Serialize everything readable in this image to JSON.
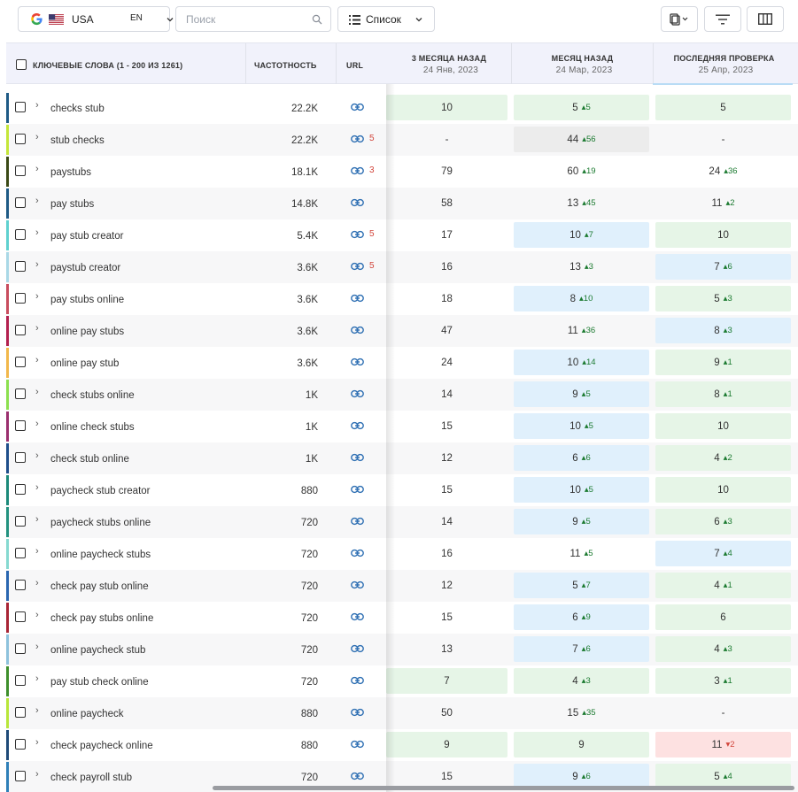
{
  "toolbar": {
    "country": "USA",
    "language": "EN",
    "search_placeholder": "Поиск",
    "view_label": "Список",
    "icons": [
      "google-icon",
      "us-flag-icon",
      "chevron-down-icon",
      "search-icon",
      "list-icon",
      "copy-icon",
      "filter-icon",
      "columns-icon"
    ]
  },
  "table": {
    "header": {
      "keywords": "КЛЮЧЕВЫЕ СЛОВА (1 - 200 ИЗ 1261)",
      "frequency": "ЧАСТОТНОСТЬ",
      "url": "URL",
      "periods": [
        {
          "label": "3 МЕСЯЦА НАЗАД",
          "date": "24 Янв, 2023"
        },
        {
          "label": "МЕСЯЦ НАЗАД",
          "date": "24 Мар, 2023"
        },
        {
          "label": "ПОСЛЕДНЯЯ ПРОВЕРКА",
          "date": "25 Апр, 2023"
        }
      ]
    },
    "rows": [
      {
        "kw": "checks stub",
        "freq": "22.2K",
        "urls": "",
        "stripe": "#1e5a85",
        "p": [
          {
            "v": "10",
            "d": "",
            "bg": "green"
          },
          {
            "v": "5",
            "d": "5",
            "bg": "green"
          },
          {
            "v": "5",
            "d": "",
            "bg": "green"
          }
        ]
      },
      {
        "kw": "stub checks",
        "freq": "22.2K",
        "urls": "5",
        "stripe": "#c4e63a",
        "p": [
          {
            "v": "-",
            "d": "",
            "bg": ""
          },
          {
            "v": "44",
            "d": "56",
            "bg": "gray"
          },
          {
            "v": "-",
            "d": "",
            "bg": ""
          }
        ]
      },
      {
        "kw": "paystubs",
        "freq": "18.1K",
        "urls": "3",
        "stripe": "#3b4a16",
        "p": [
          {
            "v": "79",
            "d": "",
            "bg": ""
          },
          {
            "v": "60",
            "d": "19",
            "bg": ""
          },
          {
            "v": "24",
            "d": "36",
            "bg": ""
          }
        ]
      },
      {
        "kw": "pay stubs",
        "freq": "14.8K",
        "urls": "",
        "stripe": "#1e5a85",
        "p": [
          {
            "v": "58",
            "d": "",
            "bg": ""
          },
          {
            "v": "13",
            "d": "45",
            "bg": ""
          },
          {
            "v": "11",
            "d": "2",
            "bg": ""
          }
        ]
      },
      {
        "kw": "pay stub creator",
        "freq": "5.4K",
        "urls": "5",
        "stripe": "#5fd1cf",
        "p": [
          {
            "v": "17",
            "d": "",
            "bg": ""
          },
          {
            "v": "10",
            "d": "7",
            "bg": "blue"
          },
          {
            "v": "10",
            "d": "",
            "bg": "green"
          }
        ]
      },
      {
        "kw": "paystub creator",
        "freq": "3.6K",
        "urls": "5",
        "stripe": "#a9d8e6",
        "p": [
          {
            "v": "16",
            "d": "",
            "bg": ""
          },
          {
            "v": "13",
            "d": "3",
            "bg": ""
          },
          {
            "v": "7",
            "d": "6",
            "bg": "blue"
          }
        ]
      },
      {
        "kw": "pay stubs online",
        "freq": "3.6K",
        "urls": "",
        "stripe": "#c84d5e",
        "p": [
          {
            "v": "18",
            "d": "",
            "bg": ""
          },
          {
            "v": "8",
            "d": "10",
            "bg": "blue"
          },
          {
            "v": "5",
            "d": "3",
            "bg": "green"
          }
        ]
      },
      {
        "kw": "online pay stubs",
        "freq": "3.6K",
        "urls": "",
        "stripe": "#b3204f",
        "p": [
          {
            "v": "47",
            "d": "",
            "bg": ""
          },
          {
            "v": "11",
            "d": "36",
            "bg": ""
          },
          {
            "v": "8",
            "d": "3",
            "bg": "blue"
          }
        ]
      },
      {
        "kw": "online pay stub",
        "freq": "3.6K",
        "urls": "",
        "stripe": "#f2b84b",
        "p": [
          {
            "v": "24",
            "d": "",
            "bg": ""
          },
          {
            "v": "10",
            "d": "14",
            "bg": "blue"
          },
          {
            "v": "9",
            "d": "1",
            "bg": "green"
          }
        ]
      },
      {
        "kw": "check stubs online",
        "freq": "1K",
        "urls": "",
        "stripe": "#8ce04f",
        "p": [
          {
            "v": "14",
            "d": "",
            "bg": ""
          },
          {
            "v": "9",
            "d": "5",
            "bg": "blue"
          },
          {
            "v": "8",
            "d": "1",
            "bg": "green"
          }
        ]
      },
      {
        "kw": "online check stubs",
        "freq": "1K",
        "urls": "",
        "stripe": "#9a2f6e",
        "p": [
          {
            "v": "15",
            "d": "",
            "bg": ""
          },
          {
            "v": "10",
            "d": "5",
            "bg": "blue"
          },
          {
            "v": "10",
            "d": "",
            "bg": "green"
          }
        ]
      },
      {
        "kw": "check stub online",
        "freq": "1K",
        "urls": "",
        "stripe": "#1e4e8a",
        "p": [
          {
            "v": "12",
            "d": "",
            "bg": ""
          },
          {
            "v": "6",
            "d": "6",
            "bg": "blue"
          },
          {
            "v": "4",
            "d": "2",
            "bg": "green"
          }
        ]
      },
      {
        "kw": "paycheck stub creator",
        "freq": "880",
        "urls": "",
        "stripe": "#1c8a7a",
        "p": [
          {
            "v": "15",
            "d": "",
            "bg": ""
          },
          {
            "v": "10",
            "d": "5",
            "bg": "blue"
          },
          {
            "v": "10",
            "d": "",
            "bg": "green"
          }
        ]
      },
      {
        "kw": "paycheck stubs online",
        "freq": "720",
        "urls": "",
        "stripe": "#23927f",
        "p": [
          {
            "v": "14",
            "d": "",
            "bg": ""
          },
          {
            "v": "9",
            "d": "5",
            "bg": "blue"
          },
          {
            "v": "6",
            "d": "3",
            "bg": "green"
          }
        ]
      },
      {
        "kw": "online paycheck stubs",
        "freq": "720",
        "urls": "",
        "stripe": "#86d9d0",
        "p": [
          {
            "v": "16",
            "d": "",
            "bg": ""
          },
          {
            "v": "11",
            "d": "5",
            "bg": ""
          },
          {
            "v": "7",
            "d": "4",
            "bg": "blue"
          }
        ]
      },
      {
        "kw": "check pay stub online",
        "freq": "720",
        "urls": "",
        "stripe": "#2a66b0",
        "p": [
          {
            "v": "12",
            "d": "",
            "bg": ""
          },
          {
            "v": "5",
            "d": "7",
            "bg": "blue"
          },
          {
            "v": "4",
            "d": "1",
            "bg": "green"
          }
        ]
      },
      {
        "kw": "check pay stubs online",
        "freq": "720",
        "urls": "",
        "stripe": "#a82535",
        "p": [
          {
            "v": "15",
            "d": "",
            "bg": ""
          },
          {
            "v": "6",
            "d": "9",
            "bg": "blue"
          },
          {
            "v": "6",
            "d": "",
            "bg": "green"
          }
        ]
      },
      {
        "kw": "online paycheck stub",
        "freq": "720",
        "urls": "",
        "stripe": "#8ec2dc",
        "p": [
          {
            "v": "13",
            "d": "",
            "bg": ""
          },
          {
            "v": "7",
            "d": "6",
            "bg": "blue"
          },
          {
            "v": "4",
            "d": "3",
            "bg": "green"
          }
        ]
      },
      {
        "kw": "pay stub check online",
        "freq": "720",
        "urls": "",
        "stripe": "#3e8f2c",
        "p": [
          {
            "v": "7",
            "d": "",
            "bg": "green"
          },
          {
            "v": "4",
            "d": "3",
            "bg": "green"
          },
          {
            "v": "3",
            "d": "1",
            "bg": "green"
          }
        ]
      },
      {
        "kw": "online paycheck",
        "freq": "880",
        "urls": "",
        "stripe": "#b8e63a",
        "p": [
          {
            "v": "50",
            "d": "",
            "bg": ""
          },
          {
            "v": "15",
            "d": "35",
            "bg": ""
          },
          {
            "v": "-",
            "d": "",
            "bg": ""
          }
        ]
      },
      {
        "kw": "check paycheck online",
        "freq": "880",
        "urls": "",
        "stripe": "#1e4a78",
        "p": [
          {
            "v": "9",
            "d": "",
            "bg": "green"
          },
          {
            "v": "9",
            "d": "",
            "bg": "green"
          },
          {
            "v": "11",
            "d": "-2",
            "bg": "red"
          }
        ]
      },
      {
        "kw": "check payroll stub",
        "freq": "720",
        "urls": "",
        "stripe": "#2f7fb8",
        "p": [
          {
            "v": "15",
            "d": "",
            "bg": ""
          },
          {
            "v": "9",
            "d": "6",
            "bg": "blue"
          },
          {
            "v": "5",
            "d": "4",
            "bg": "green"
          }
        ]
      }
    ]
  }
}
